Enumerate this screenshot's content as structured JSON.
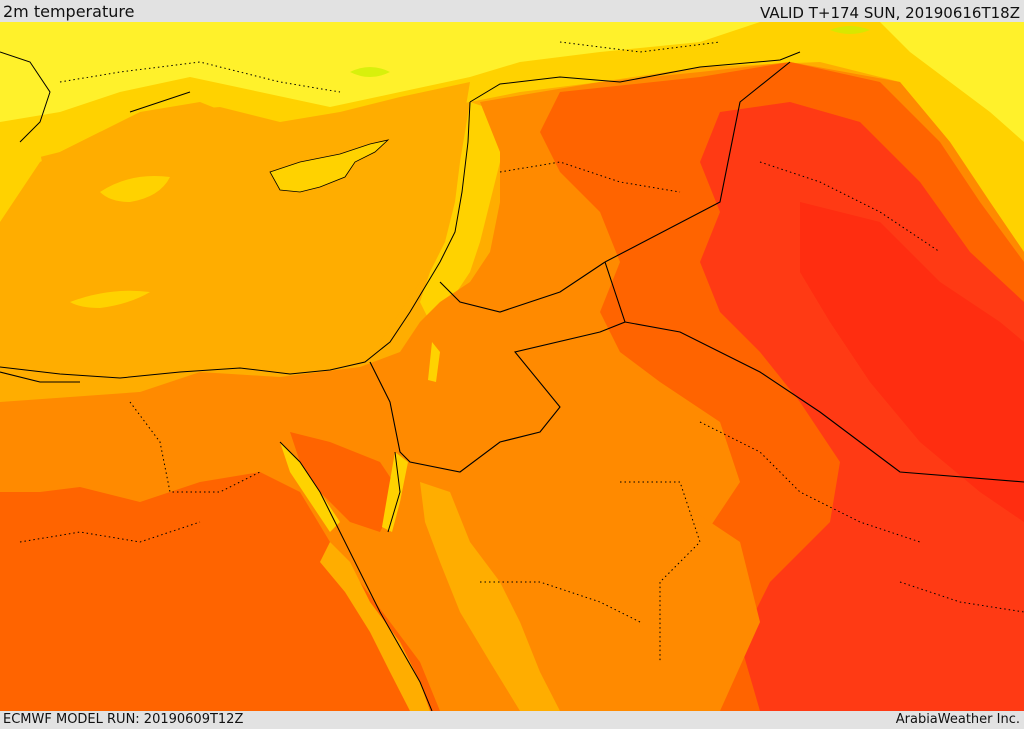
{
  "header": {
    "product": "2m temperature",
    "valid": "VALID T+174 SUN, 20190616T18Z"
  },
  "footer": {
    "model_run": "ECMWF MODEL RUN: 20190609T12Z",
    "credit": "ArabiaWeather Inc."
  },
  "palette": {
    "light_yellow": "#fff12b",
    "yellow": "#ffd200",
    "amber": "#ffad00",
    "orange": "#ff8a00",
    "dark_orange": "#ff6400",
    "red_orange": "#ff3a14",
    "red": "#ff2d10",
    "green_hint": "#c8f000"
  }
}
